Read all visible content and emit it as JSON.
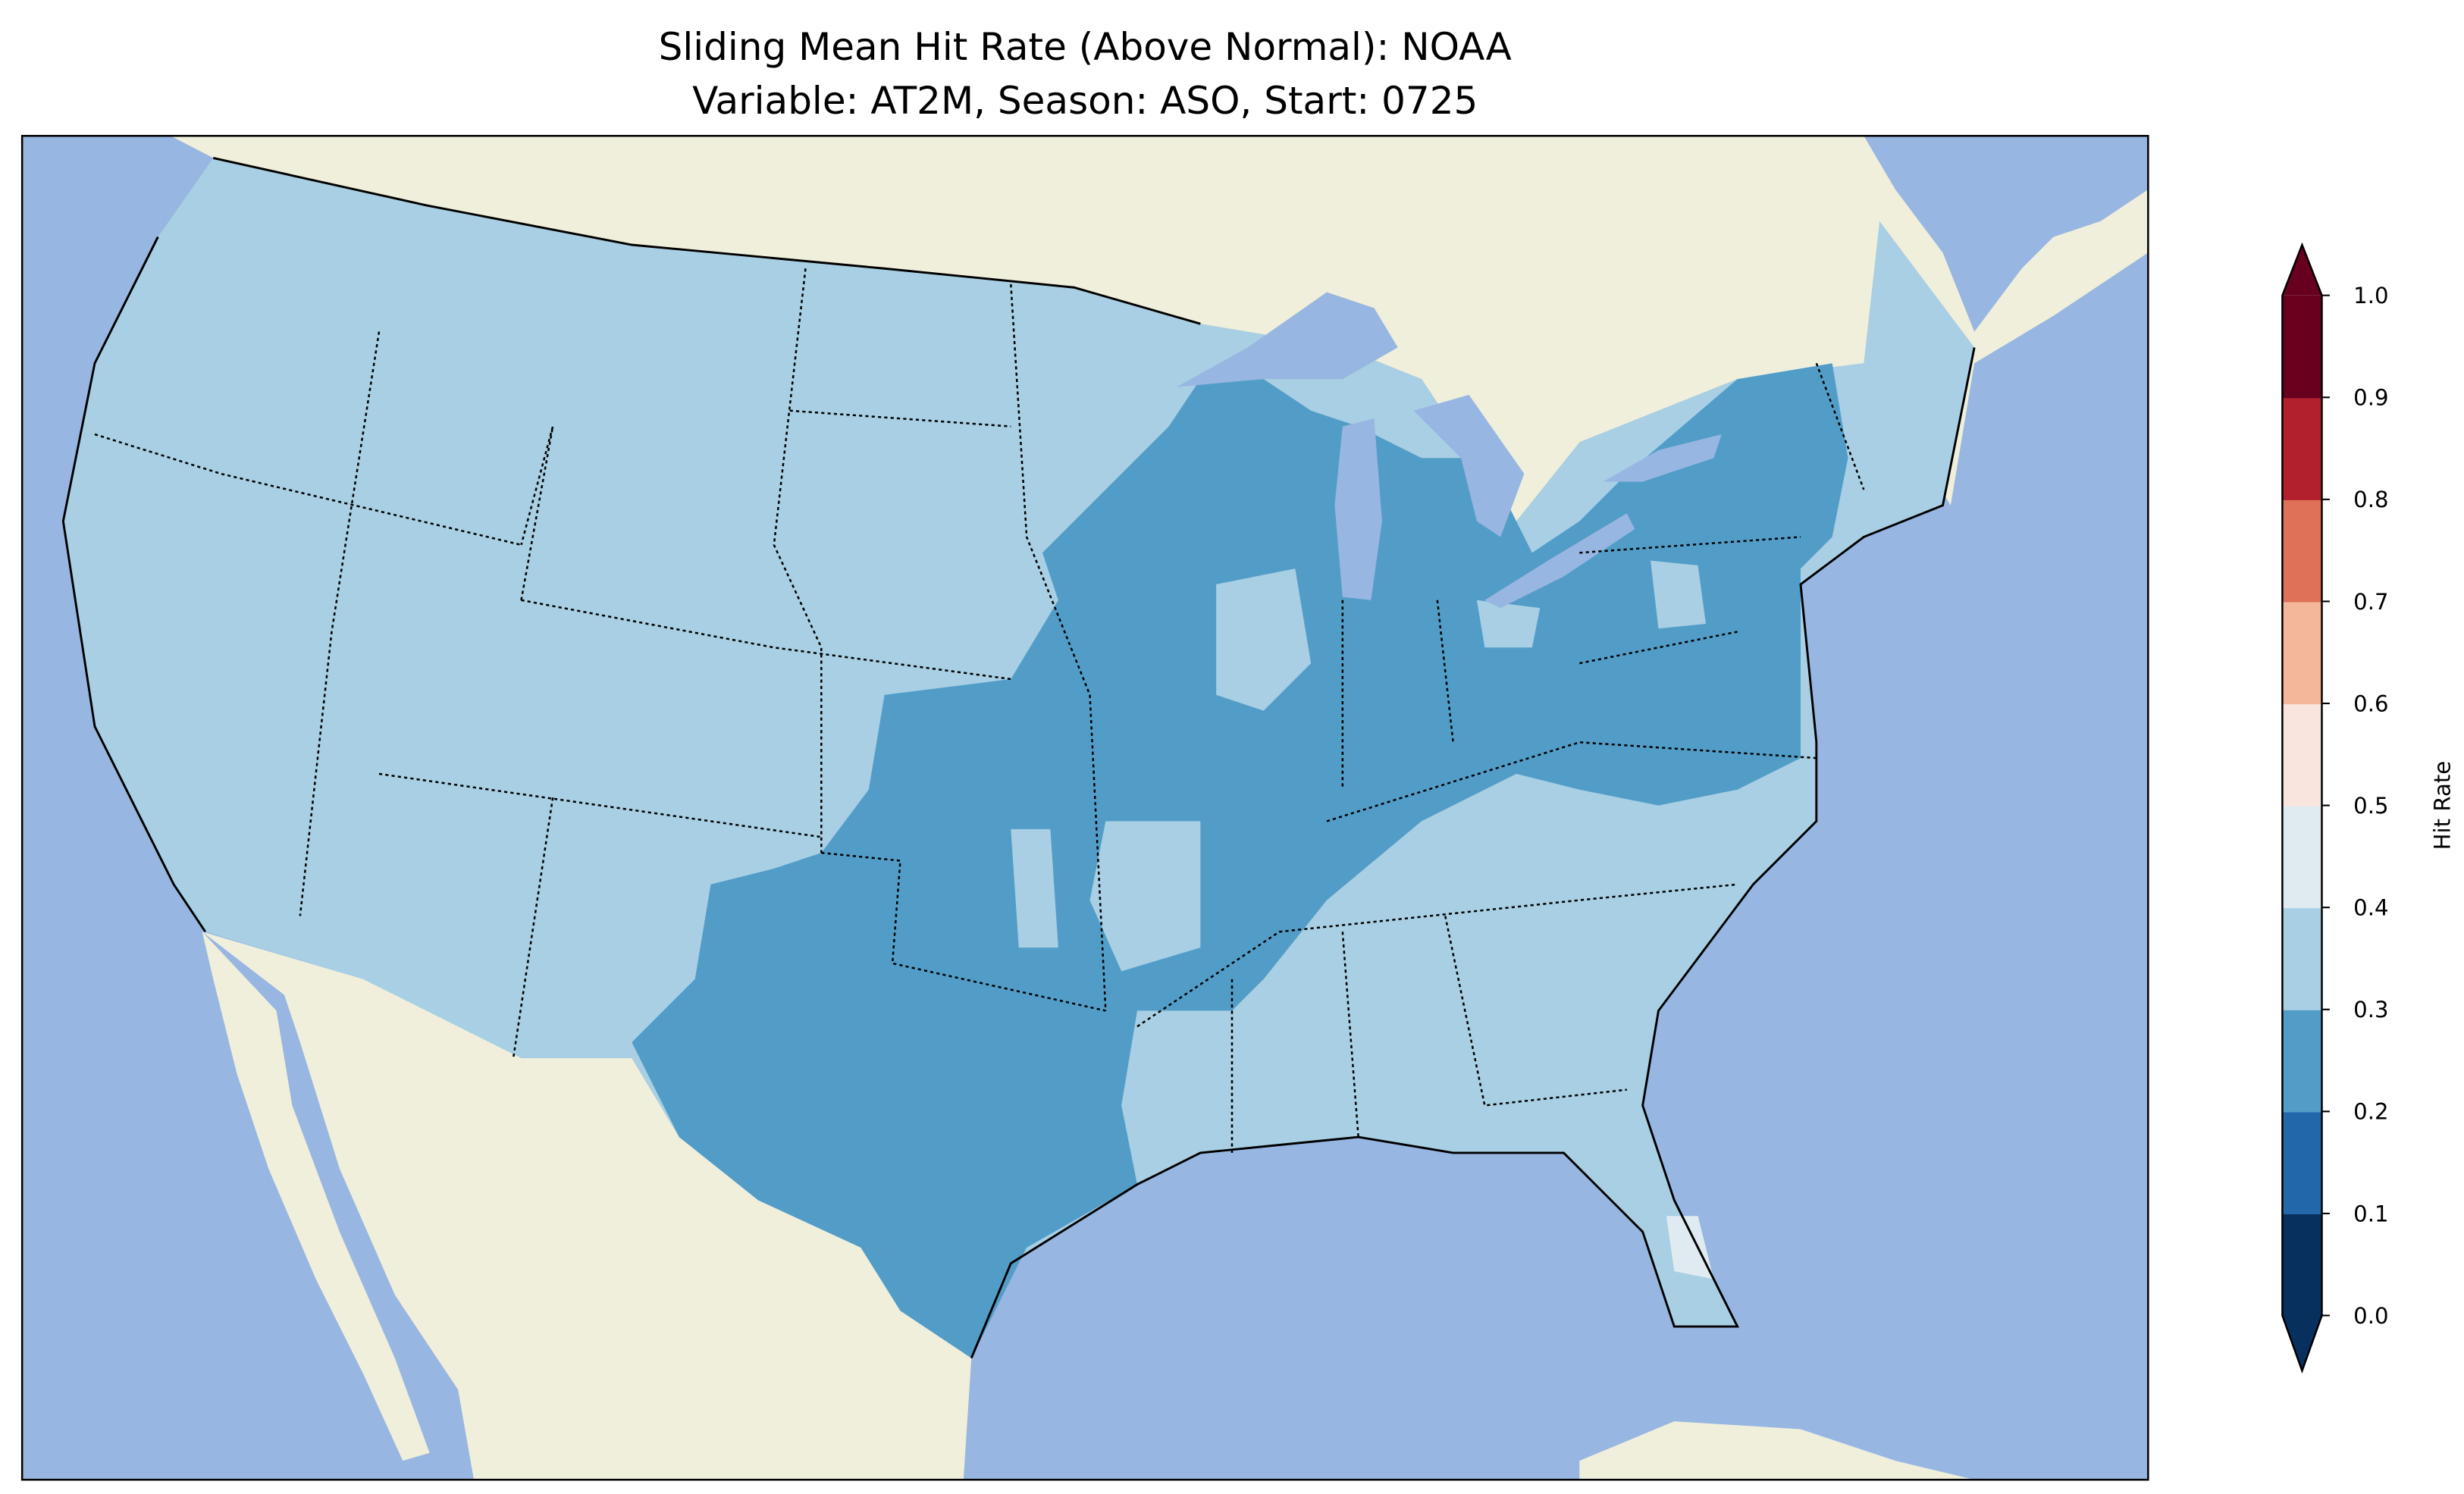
{
  "chart_data": {
    "type": "heatmap",
    "title_line1": "Sliding Mean Hit Rate (Above Normal): NOAA",
    "title_line2": "Variable: AT2M, Season: ASO, Start: 0725",
    "map_region": "Contiguous United States",
    "colorbar": {
      "label": "Hit Rate",
      "range": [
        0.0,
        1.0
      ],
      "extend": "both",
      "ticks": [
        "0.0",
        "0.1",
        "0.2",
        "0.3",
        "0.4",
        "0.5",
        "0.6",
        "0.7",
        "0.8",
        "0.9",
        "1.0"
      ],
      "bin_colors": [
        "#08305e",
        "#2367ab",
        "#529dc8",
        "#a8cfe3",
        "#dfeaf1",
        "#f9e5dd",
        "#f5b799",
        "#de7158",
        "#b2202e",
        "#67001f"
      ]
    },
    "regions": [
      {
        "name": "West, Plains, Southeast, Northern New England",
        "bin": "0.3-0.4"
      },
      {
        "name": "Texas, Midwest, Ohio Valley, Mid-Atlantic",
        "bin": "0.2-0.3"
      },
      {
        "name": "South Florida",
        "bin": "0.4-0.5"
      }
    ],
    "colors": {
      "ocean": "#97b6e1",
      "land": "#efefdb"
    }
  }
}
